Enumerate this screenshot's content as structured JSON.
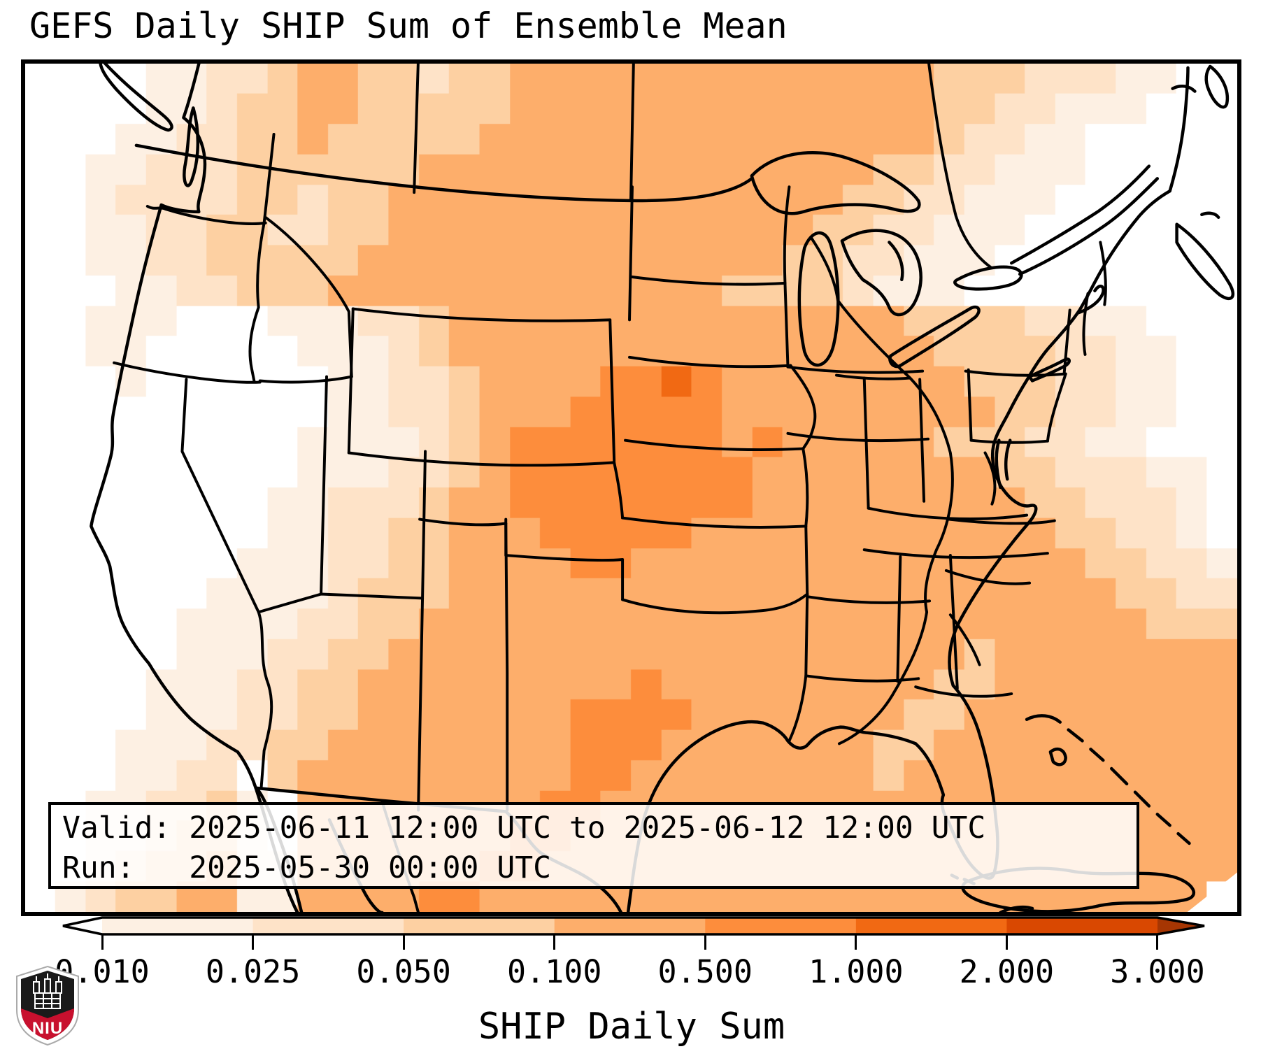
{
  "title": "GEFS Daily SHIP Sum of Ensemble Mean",
  "info_box": {
    "line1": "Valid: 2025-06-11 12:00 UTC to 2025-06-12 12:00 UTC",
    "line2": "Run:   2025-05-30 00:00 UTC"
  },
  "colorbar": {
    "label": "SHIP Daily Sum",
    "ticks": [
      "0.010",
      "0.025",
      "0.050",
      "0.100",
      "0.500",
      "1.000",
      "2.000",
      "3.000"
    ],
    "segment_colors": [
      "#fdf0e3",
      "#fee3c8",
      "#fdd0a2",
      "#fdae6b",
      "#fd8d3c",
      "#f16913",
      "#d94801"
    ],
    "under_color": "#ffffff",
    "over_color": "#a63603",
    "outline_color": "#000000"
  },
  "logo": {
    "text": "NIU",
    "shield_dark": "#1a1a1a",
    "shield_red": "#c8102e"
  },
  "chart_data": {
    "type": "heatmap",
    "title": "GEFS Daily SHIP Sum of Ensemble Mean",
    "valid": "2025-06-11 12:00 UTC to 2025-06-12 12:00 UTC",
    "run": "2025-05-30 00:00 UTC",
    "colorbar_label": "SHIP Daily Sum",
    "colorbar_ticks": [
      0.01,
      0.025,
      0.05,
      0.1,
      0.5,
      1.0,
      2.0,
      3.0
    ],
    "palette": [
      "#ffffff",
      "#fdf0e3",
      "#fee3c8",
      "#fdd0a2",
      "#fdae6b",
      "#fd8d3c",
      "#f16913",
      "#d94801"
    ],
    "cell_encoding": "each character 0-7 is an index into palette; grid covers the mapped region left-to-right, top-to-bottom",
    "grid_cols": 40,
    "grid_rows_count": 28,
    "grid_rows": [
      "0000112234433233444444444444443332221100",
      "0000112334433333444444444444443322111000",
      "0001122334333334444444444444443221100000",
      "0011222333333444444444444444332211100000",
      "0012222332334444444444444443322111000000",
      "0011223322334444444444444433221110000000",
      "0011223333344444444444444332211100000000",
      "0001122333444444444444433332111000000000",
      "0011100011122344444444444444433332211000",
      "0011000001112344444444444444443333221100",
      "0001000000112234444556544444444333221100",
      "0000000000112234445555544444444433221100",
      "0000000001111234555555545444443332211 00",
      "0000000001112234555555554444444433222110",
      "0000000011222344555555554444444443322210",
      "0000000011223344455555444444444444332210",
      "0000000111223344445544444444444444433221",
      "0000001111233344444444444444444444443322",
      "0000011112233444444444444444444444444333",
      "0000011122334444444444444444444344444444",
      "0000111223344444444454444444443344444444",
      "0000111223344444445555444444433444444444",
      "0001112233444444445554444444334444444444",
      "0001122034444444445544444444344444444444",
      "0011223104444444455444444444444444444444",
      "0011233104444444554444444444444444444444",
      "0012334114444445544444444444444444444444",
      "0123344114444554444444444444444444444440"
    ]
  }
}
